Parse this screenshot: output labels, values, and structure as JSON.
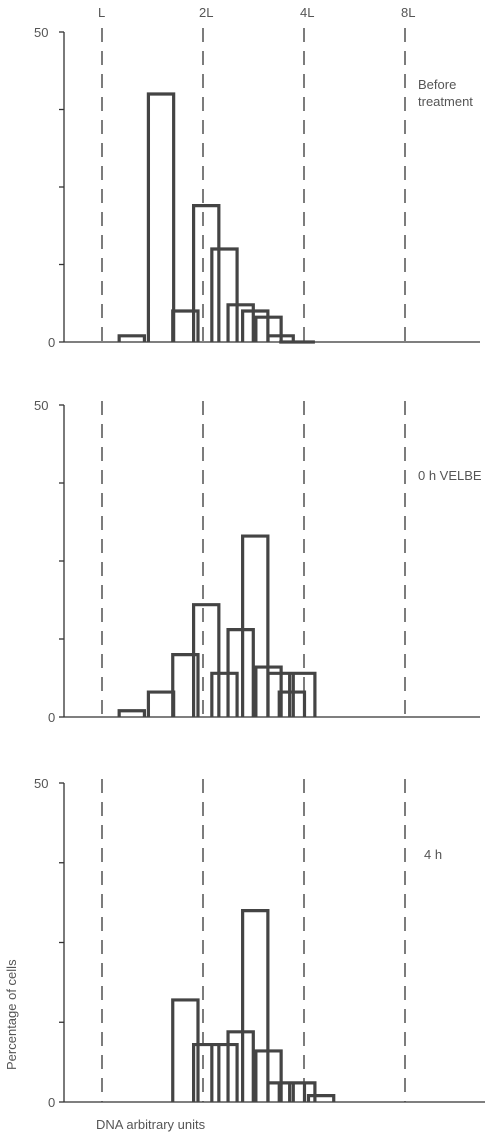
{
  "chart_data": {
    "type": "histogram",
    "xlabel": "DNA arbitrary units",
    "ylabel": "Percentage of cells",
    "x_reference_labels": [
      "L",
      "2L",
      "4L",
      "8L"
    ],
    "x_reference_values": [
      1,
      2,
      4,
      8
    ],
    "x_scale": "log2",
    "bin_width_log2": 0.25,
    "panels": [
      {
        "label_lines": [
          "Before",
          "treatment"
        ],
        "ylim": [
          0,
          50
        ],
        "ytick_labels": [
          "0",
          "50"
        ],
        "bin_starts": [
          1.125,
          1.375,
          1.625,
          1.875,
          2.125,
          2.375,
          2.625,
          2.875,
          3.125,
          3.375,
          3.625
        ],
        "values": [
          1,
          40,
          5,
          22,
          15,
          6,
          5,
          4,
          1,
          0,
          0
        ]
      },
      {
        "label_lines": [
          "0 h VELBE"
        ],
        "ylim": [
          0,
          50
        ],
        "ytick_labels": [
          "0",
          "50"
        ],
        "bin_starts": [
          1.125,
          1.375,
          1.625,
          1.875,
          2.125,
          2.375,
          2.625,
          2.875,
          3.125,
          3.375,
          3.625
        ],
        "values": [
          1,
          4,
          10,
          18,
          7,
          14,
          29,
          8,
          7,
          4,
          7
        ]
      },
      {
        "label_lines": [
          "4 h"
        ],
        "ylim": [
          0,
          50
        ],
        "ytick_labels": [
          "0",
          "50"
        ],
        "bin_starts": [
          1.625,
          1.875,
          2.125,
          2.375,
          2.625,
          2.875,
          3.125,
          3.375,
          3.625,
          4.125
        ],
        "values": [
          16,
          9,
          9,
          11,
          30,
          8,
          3,
          3,
          3,
          1
        ]
      }
    ]
  }
}
